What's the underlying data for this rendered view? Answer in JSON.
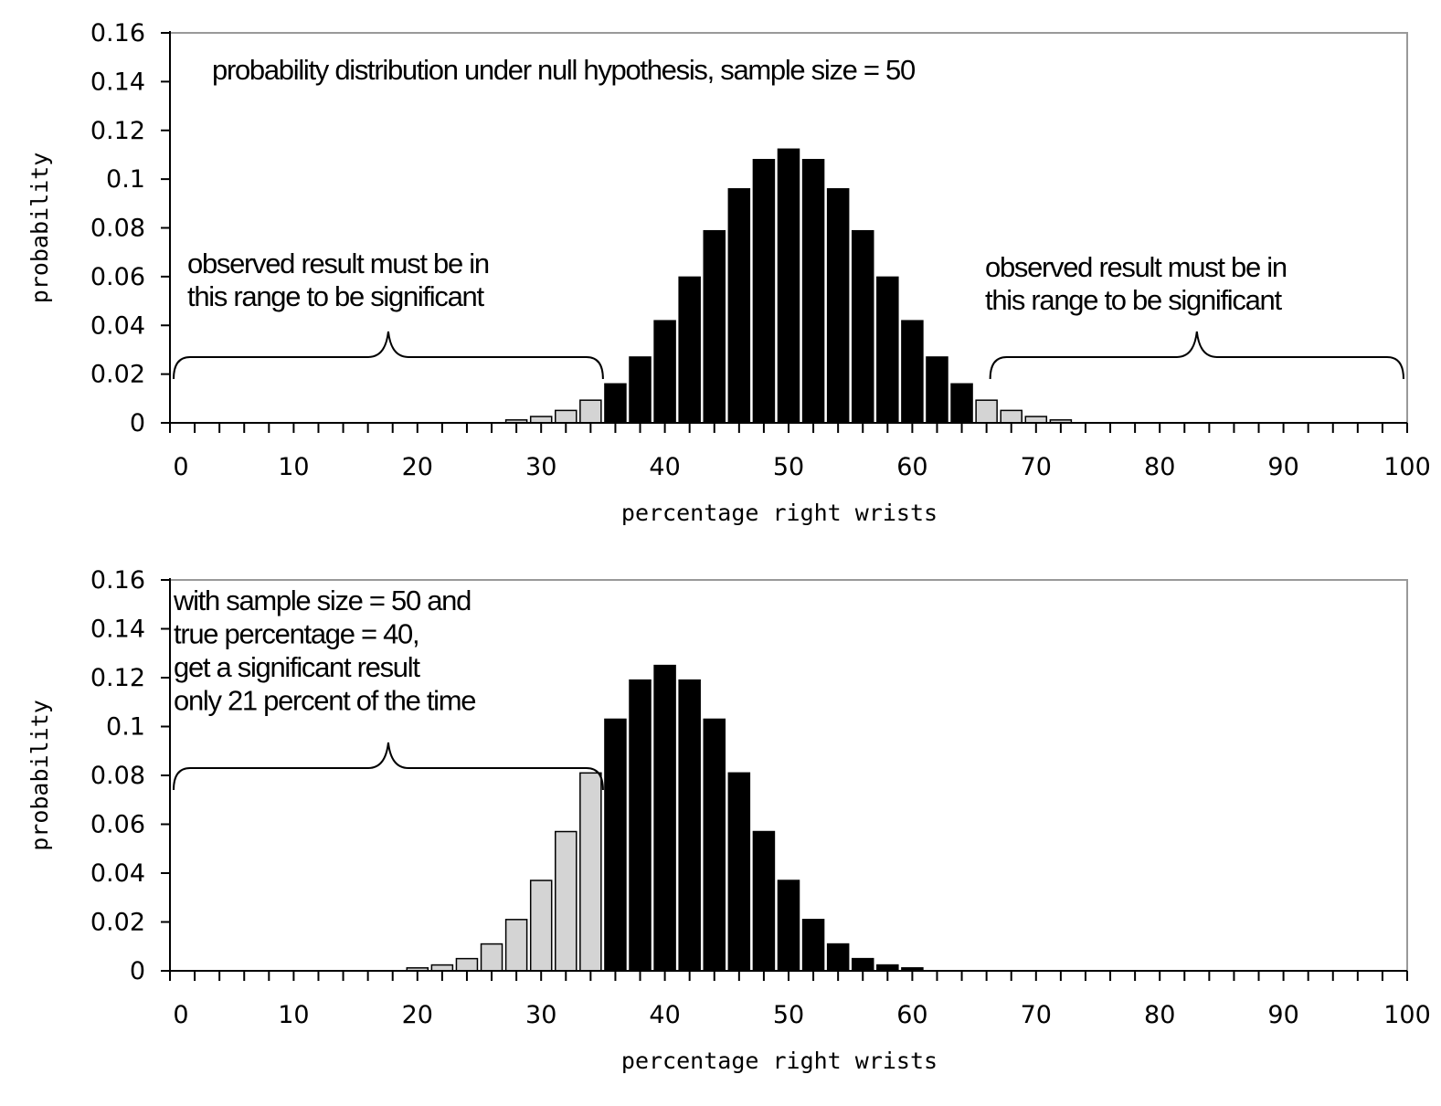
{
  "chart_data": [
    {
      "type": "bar",
      "xlabel": "percentage right wrists",
      "ylabel": "probability",
      "xlim": [
        0,
        100
      ],
      "ylim": [
        0,
        0.16
      ],
      "xticks": [
        0,
        10,
        20,
        30,
        40,
        50,
        60,
        70,
        80,
        90,
        100
      ],
      "yticks": [
        "0",
        "0.02",
        "0.04",
        "0.06",
        "0.08",
        "0.1",
        "0.12",
        "0.14",
        "0.16"
      ],
      "grid": false,
      "colors": {
        "significant": "#d4d4d4",
        "not_significant": "#000000",
        "frame": "#999999"
      },
      "annotations": [
        {
          "lines": [
            "probability distribution under null hypothesis, sample size = 50"
          ]
        },
        {
          "lines": [
            "observed result must be in",
            "this range to be significant"
          ]
        },
        {
          "lines": [
            "observed result must be in",
            "this range to be significant"
          ]
        }
      ],
      "bars": [
        {
          "x": 28,
          "y": 0.0012,
          "significant": true
        },
        {
          "x": 30,
          "y": 0.0026,
          "significant": true
        },
        {
          "x": 32,
          "y": 0.0051,
          "significant": true
        },
        {
          "x": 34,
          "y": 0.0093,
          "significant": true
        },
        {
          "x": 36,
          "y": 0.016,
          "significant": false
        },
        {
          "x": 38,
          "y": 0.027,
          "significant": false
        },
        {
          "x": 40,
          "y": 0.0419,
          "significant": false
        },
        {
          "x": 42,
          "y": 0.0598,
          "significant": false
        },
        {
          "x": 44,
          "y": 0.0788,
          "significant": false
        },
        {
          "x": 46,
          "y": 0.096,
          "significant": false
        },
        {
          "x": 48,
          "y": 0.108,
          "significant": false
        },
        {
          "x": 50,
          "y": 0.1123,
          "significant": false
        },
        {
          "x": 52,
          "y": 0.108,
          "significant": false
        },
        {
          "x": 54,
          "y": 0.096,
          "significant": false
        },
        {
          "x": 56,
          "y": 0.0788,
          "significant": false
        },
        {
          "x": 58,
          "y": 0.0598,
          "significant": false
        },
        {
          "x": 60,
          "y": 0.0419,
          "significant": false
        },
        {
          "x": 62,
          "y": 0.027,
          "significant": false
        },
        {
          "x": 64,
          "y": 0.016,
          "significant": false
        },
        {
          "x": 66,
          "y": 0.0093,
          "significant": true
        },
        {
          "x": 68,
          "y": 0.0051,
          "significant": true
        },
        {
          "x": 70,
          "y": 0.0026,
          "significant": true
        },
        {
          "x": 72,
          "y": 0.0012,
          "significant": true
        }
      ],
      "brackets": [
        {
          "x_start": 0,
          "x_end": 35,
          "y": 0.027
        },
        {
          "x_start": 66,
          "x_end": 101,
          "y": 0.027
        }
      ]
    },
    {
      "type": "bar",
      "xlabel": "percentage right wrists",
      "ylabel": "probability",
      "xlim": [
        0,
        100
      ],
      "ylim": [
        0,
        0.16
      ],
      "xticks": [
        0,
        10,
        20,
        30,
        40,
        50,
        60,
        70,
        80,
        90,
        100
      ],
      "yticks": [
        "0",
        "0.02",
        "0.04",
        "0.06",
        "0.08",
        "0.1",
        "0.12",
        "0.14",
        "0.16"
      ],
      "grid": false,
      "colors": {
        "significant": "#d4d4d4",
        "not_significant": "#000000",
        "frame": "#999999"
      },
      "annotations": [
        {
          "lines": [
            "with sample size = 50 and",
            "true percentage = 40,",
            "get a significant result",
            "only 21 percent of the time"
          ]
        }
      ],
      "bars": [
        {
          "x": 20,
          "y": 0.0012,
          "significant": true
        },
        {
          "x": 22,
          "y": 0.0024,
          "significant": true
        },
        {
          "x": 24,
          "y": 0.005,
          "significant": true
        },
        {
          "x": 26,
          "y": 0.011,
          "significant": true
        },
        {
          "x": 28,
          "y": 0.021,
          "significant": true
        },
        {
          "x": 30,
          "y": 0.037,
          "significant": true
        },
        {
          "x": 32,
          "y": 0.057,
          "significant": true
        },
        {
          "x": 34,
          "y": 0.081,
          "significant": true
        },
        {
          "x": 36,
          "y": 0.103,
          "significant": false
        },
        {
          "x": 38,
          "y": 0.119,
          "significant": false
        },
        {
          "x": 40,
          "y": 0.125,
          "significant": false
        },
        {
          "x": 42,
          "y": 0.119,
          "significant": false
        },
        {
          "x": 44,
          "y": 0.103,
          "significant": false
        },
        {
          "x": 46,
          "y": 0.081,
          "significant": false
        },
        {
          "x": 48,
          "y": 0.057,
          "significant": false
        },
        {
          "x": 50,
          "y": 0.037,
          "significant": false
        },
        {
          "x": 52,
          "y": 0.021,
          "significant": false
        },
        {
          "x": 54,
          "y": 0.011,
          "significant": false
        },
        {
          "x": 56,
          "y": 0.005,
          "significant": false
        },
        {
          "x": 58,
          "y": 0.0024,
          "significant": false
        },
        {
          "x": 60,
          "y": 0.0012,
          "significant": false
        }
      ],
      "brackets": [
        {
          "x_start": 0,
          "x_end": 35,
          "y": 0.083
        }
      ]
    }
  ]
}
